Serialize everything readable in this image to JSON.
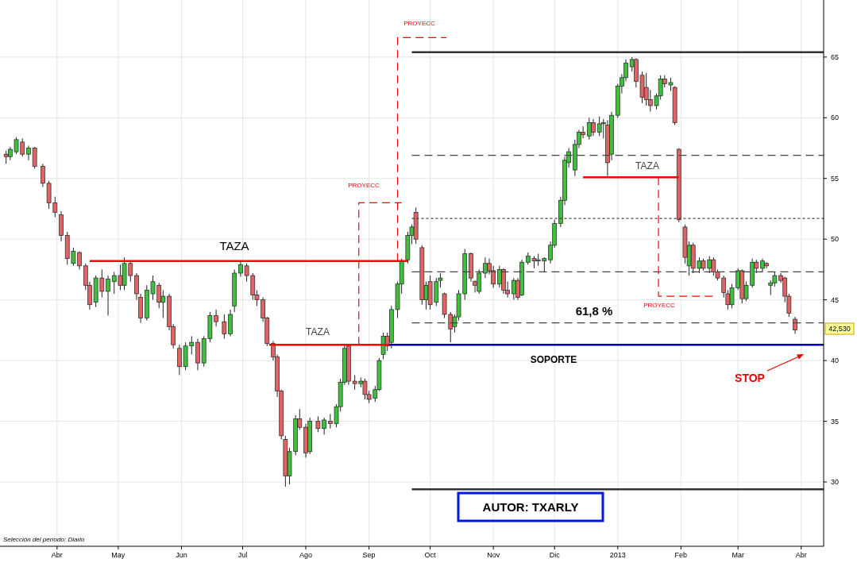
{
  "chart_data": {
    "type": "candlestick",
    "xlim": [
      "2012-03-04",
      "2013-04-12"
    ],
    "ylim": [
      24.7,
      69.7
    ],
    "yticks": [
      30,
      35,
      40,
      45,
      50,
      55,
      60,
      65
    ],
    "xticks": [
      {
        "value": "2012-04-01",
        "label": "Abr"
      },
      {
        "value": "2012-05-01",
        "label": "May"
      },
      {
        "value": "2012-06-01",
        "label": "Jun"
      },
      {
        "value": "2012-07-01",
        "label": "Jul"
      },
      {
        "value": "2012-08-01",
        "label": "Ago"
      },
      {
        "value": "2012-09-01",
        "label": "Sep"
      },
      {
        "value": "2012-10-01",
        "label": "Oct"
      },
      {
        "value": "2012-11-01",
        "label": "Nov"
      },
      {
        "value": "2012-12-01",
        "label": "Dic"
      },
      {
        "value": "2013-01-01",
        "label": "2013"
      },
      {
        "value": "2013-02-01",
        "label": "Feb"
      },
      {
        "value": "2013-03-01",
        "label": "Mar"
      },
      {
        "value": "2013-04-01",
        "label": "Abr"
      }
    ],
    "grid": true,
    "series": [
      {
        "color": "#3fbf3f",
        "x": [
          "2012-03-09",
          "2012-03-12",
          "2012-03-18",
          "2012-04-09",
          "2012-04-20",
          "2012-04-26",
          "2012-04-29",
          "2012-05-04",
          "2012-05-15",
          "2012-05-18",
          "2012-05-23",
          "2012-06-03",
          "2012-06-06",
          "2012-06-12",
          "2012-06-15",
          "2012-06-25",
          "2012-06-27",
          "2012-06-30",
          "2012-07-24",
          "2012-07-27",
          "2012-08-03",
          "2012-08-10",
          "2012-08-16",
          "2012-08-18",
          "2012-08-20",
          "2012-08-28",
          "2012-09-04",
          "2012-09-06",
          "2012-09-08",
          "2012-09-12",
          "2012-09-15",
          "2012-09-17",
          "2012-09-20",
          "2012-09-22",
          "2012-09-29",
          "2012-10-04",
          "2012-10-06",
          "2012-10-13",
          "2012-10-15",
          "2012-10-18",
          "2012-10-25",
          "2012-10-28",
          "2012-11-04",
          "2012-11-11",
          "2012-11-15",
          "2012-11-18",
          "2012-11-23",
          "2012-11-26",
          "2012-11-29",
          "2012-12-01",
          "2012-12-04",
          "2012-12-06",
          "2012-12-08",
          "2012-12-11",
          "2012-12-13",
          "2012-12-18",
          "2012-12-23",
          "2012-12-25",
          "2012-12-29",
          "2013-01-01",
          "2013-01-03",
          "2013-01-05",
          "2013-01-08",
          "2013-01-20",
          "2013-01-22",
          "2013-01-27",
          "2013-02-05",
          "2013-02-10",
          "2013-02-15",
          "2013-02-26",
          "2013-03-01",
          "2013-03-05",
          "2013-03-08",
          "2013-03-13",
          "2013-03-17",
          "2013-03-19"
        ],
        "ohlc": [
          [
            56.8,
            57.6,
            56.5,
            57.4
          ],
          [
            57.2,
            58.4,
            57,
            58.2
          ],
          [
            57,
            57.7,
            56.5,
            57.5
          ],
          [
            48,
            49.3,
            47.8,
            49
          ],
          [
            44.8,
            47,
            44.4,
            46.8
          ],
          [
            45.7,
            47,
            43.7,
            46.7
          ],
          [
            46.5,
            47.3,
            45.5,
            47
          ],
          [
            46.2,
            48.5,
            45.8,
            48
          ],
          [
            43.5,
            46.2,
            43.3,
            45.8
          ],
          [
            45.5,
            47,
            45,
            46.5
          ],
          [
            44.8,
            45.8,
            43.5,
            45.3
          ],
          [
            39.5,
            41.5,
            39.2,
            41.2
          ],
          [
            41.2,
            42,
            40.5,
            41.5
          ],
          [
            39.8,
            42,
            39.5,
            41.8
          ],
          [
            41.8,
            44,
            41.5,
            43.7
          ],
          [
            42.2,
            44.2,
            42,
            43.8
          ],
          [
            44.5,
            47.5,
            44,
            47.2
          ],
          [
            47.2,
            48.2,
            46.9,
            47.9
          ],
          [
            30.5,
            32.8,
            29.8,
            32.5
          ],
          [
            32.5,
            35.5,
            32.2,
            35.2
          ],
          [
            32.5,
            35.3,
            32.3,
            35
          ],
          [
            34.4,
            35.3,
            33.9,
            35.1
          ],
          [
            34.8,
            36.4,
            34.5,
            36.2
          ],
          [
            36.2,
            38.5,
            35.8,
            38.2
          ],
          [
            38.2,
            41.3,
            38,
            41
          ],
          [
            38.1,
            38.6,
            37.8,
            38.3
          ],
          [
            36.9,
            37.9,
            36.6,
            37.6
          ],
          [
            37.6,
            40.2,
            37.5,
            40
          ],
          [
            40.5,
            42.3,
            40.1,
            42
          ],
          [
            41.5,
            44.5,
            41,
            44.2
          ],
          [
            44.2,
            46.5,
            43.5,
            46.3
          ],
          [
            46.3,
            48.4,
            45.5,
            48.2
          ],
          [
            48.3,
            50.6,
            48,
            50.3
          ],
          [
            50.3,
            51.2,
            49.6,
            51
          ],
          [
            45,
            46.5,
            44.2,
            46.2
          ],
          [
            44.8,
            46.8,
            44.5,
            46.5
          ],
          [
            46.6,
            47.2,
            46,
            46.8
          ],
          [
            42.8,
            43.8,
            42.3,
            43.6
          ],
          [
            43.6,
            45.8,
            43.3,
            45.5
          ],
          [
            45.5,
            49.2,
            45,
            48.8
          ],
          [
            45.7,
            47.5,
            45.5,
            47.2
          ],
          [
            47.2,
            48.5,
            46.8,
            48
          ],
          [
            46.3,
            47.8,
            46,
            47.5
          ],
          [
            45.5,
            46.8,
            45,
            46.6
          ],
          [
            45.4,
            48.3,
            45.3,
            48.1
          ],
          [
            48.1,
            48.9,
            47.9,
            48.6
          ],
          [
            48.2,
            48.8,
            47.8,
            48.3
          ],
          [
            48.2,
            48.5,
            47.3,
            48.4
          ],
          [
            48.3,
            49.8,
            48,
            49.5
          ],
          [
            49.5,
            51.6,
            49.3,
            51.3
          ],
          [
            51.3,
            53.5,
            51,
            53.2
          ],
          [
            53.2,
            56.8,
            52.8,
            56.5
          ],
          [
            56.3,
            57.5,
            55.9,
            57.2
          ],
          [
            55.7,
            58.2,
            55.2,
            57.8
          ],
          [
            57.8,
            59,
            57.5,
            58.8
          ],
          [
            58.5,
            60,
            58.2,
            59.6
          ],
          [
            58.8,
            60.1,
            58.5,
            59.5
          ],
          [
            59.5,
            59.9,
            58.3,
            59.6
          ],
          [
            57,
            60.5,
            56.5,
            60.2
          ],
          [
            60.2,
            62.8,
            60,
            62.6
          ],
          [
            62.6,
            63.6,
            62,
            63.3
          ],
          [
            63.3,
            64.8,
            63,
            64.5
          ],
          [
            64.2,
            65,
            63.8,
            64.8
          ],
          [
            61,
            62,
            60.7,
            61.8
          ],
          [
            61.8,
            63.5,
            61.5,
            63.2
          ],
          [
            62.7,
            63.3,
            62.2,
            62.9
          ],
          [
            47.8,
            49.8,
            47,
            49.5
          ],
          [
            47.6,
            48.5,
            47.2,
            48.2
          ],
          [
            47.6,
            48.6,
            47.2,
            48.3
          ],
          [
            44.6,
            46.3,
            44.3,
            46
          ],
          [
            46,
            47.6,
            45.8,
            47.4
          ],
          [
            45.1,
            46.5,
            44.9,
            46.2
          ],
          [
            46.2,
            48.4,
            46,
            48.1
          ],
          [
            47.6,
            48.4,
            47.3,
            48.2
          ],
          [
            46.2,
            46.6,
            45.4,
            46.4
          ],
          [
            46.4,
            47.3,
            46.1,
            47
          ]
        ]
      },
      {
        "color": "#e06464",
        "x": [
          "2012-03-07",
          "2012-03-15",
          "2012-03-21",
          "2012-03-25",
          "2012-03-28",
          "2012-03-31",
          "2012-04-03",
          "2012-04-06",
          "2012-04-12",
          "2012-04-15",
          "2012-04-17",
          "2012-04-23",
          "2012-05-02",
          "2012-05-07",
          "2012-05-10",
          "2012-05-12",
          "2012-05-21",
          "2012-05-26",
          "2012-05-28",
          "2012-05-31",
          "2012-06-09",
          "2012-06-18",
          "2012-06-22",
          "2012-07-03",
          "2012-07-06",
          "2012-07-08",
          "2012-07-11",
          "2012-07-13",
          "2012-07-16",
          "2012-07-18",
          "2012-07-20",
          "2012-07-22",
          "2012-07-29",
          "2012-08-01",
          "2012-08-07",
          "2012-08-13",
          "2012-08-22",
          "2012-08-25",
          "2012-08-30",
          "2012-09-01",
          "2012-09-10",
          "2012-09-24",
          "2012-09-27",
          "2012-10-01",
          "2012-10-08",
          "2012-10-11",
          "2012-10-21",
          "2012-10-23",
          "2012-10-30",
          "2012-11-01",
          "2012-11-06",
          "2012-11-08",
          "2012-11-13",
          "2012-11-21",
          "2012-12-15",
          "2012-12-20",
          "2012-12-27",
          "2013-01-10",
          "2013-01-13",
          "2013-01-15",
          "2013-01-17",
          "2013-01-24",
          "2013-01-29",
          "2013-01-31",
          "2013-02-03",
          "2013-02-07",
          "2013-02-12",
          "2013-02-17",
          "2013-02-19",
          "2013-02-22",
          "2013-02-24",
          "2013-03-03",
          "2013-03-10",
          "2013-03-15",
          "2013-03-22",
          "2013-03-24",
          "2013-03-26",
          "2013-03-29"
        ],
        "ohlc": [
          [
            57,
            57.3,
            56.2,
            56.8
          ],
          [
            58,
            58.3,
            56.8,
            57
          ],
          [
            57.5,
            57.6,
            55.8,
            56
          ],
          [
            56,
            56.2,
            54.3,
            54.6
          ],
          [
            54.6,
            54.8,
            52.5,
            53
          ],
          [
            53,
            53.5,
            51.8,
            52.2
          ],
          [
            52,
            52.3,
            49.8,
            50.3
          ],
          [
            50.3,
            50.6,
            47.9,
            48.4
          ],
          [
            48.9,
            49,
            47.5,
            47.8
          ],
          [
            47.8,
            48,
            45.8,
            46.2
          ],
          [
            46.2,
            46.5,
            44.2,
            44.6
          ],
          [
            46.8,
            47.5,
            45.2,
            45.7
          ],
          [
            47,
            47.9,
            45.8,
            46.2
          ],
          [
            48,
            48.2,
            46.5,
            47
          ],
          [
            47,
            47.2,
            45,
            45.5
          ],
          [
            45.2,
            45.5,
            43.1,
            43.5
          ],
          [
            46.2,
            46.4,
            44.3,
            44.8
          ],
          [
            45.3,
            45.5,
            42.5,
            42.8
          ],
          [
            42.8,
            43,
            41,
            41.3
          ],
          [
            41,
            41.3,
            38.8,
            39.5
          ],
          [
            41.5,
            41.8,
            39.2,
            39.8
          ],
          [
            43.7,
            44.2,
            42.8,
            43.2
          ],
          [
            43.2,
            43.8,
            41.8,
            42.2
          ],
          [
            47.8,
            48,
            46.5,
            47
          ],
          [
            47,
            47.2,
            45,
            45.4
          ],
          [
            45.4,
            45.8,
            44.5,
            45
          ],
          [
            45,
            45.2,
            43.2,
            43.5
          ],
          [
            43.5,
            43.6,
            41.2,
            41.4
          ],
          [
            41.4,
            41.6,
            40,
            40.3
          ],
          [
            40.3,
            40.5,
            37,
            37.5
          ],
          [
            37.5,
            37.6,
            33.5,
            33.8
          ],
          [
            33.5,
            33.8,
            29.6,
            30.5
          ],
          [
            35.2,
            36,
            34.3,
            34.5
          ],
          [
            34.5,
            34.8,
            32,
            32.4
          ],
          [
            35,
            35.4,
            34.1,
            34.4
          ],
          [
            35,
            35.6,
            34.4,
            34.8
          ],
          [
            41.2,
            41.3,
            38,
            38.3
          ],
          [
            38.3,
            38.8,
            37.6,
            38.1
          ],
          [
            38.3,
            38.5,
            36.8,
            37.2
          ],
          [
            37.2,
            37.5,
            36.5,
            36.8
          ],
          [
            42,
            42.3,
            40.8,
            41.2
          ],
          [
            52.2,
            52.6,
            49.6,
            50
          ],
          [
            49.3,
            49.5,
            44.6,
            45
          ],
          [
            46.5,
            47,
            44.2,
            44.6
          ],
          [
            45.5,
            45.6,
            43.5,
            43.8
          ],
          [
            43.8,
            44,
            41.5,
            42.6
          ],
          [
            48.8,
            48.9,
            46.5,
            46.8
          ],
          [
            46.5,
            46.6,
            45.6,
            46.2
          ],
          [
            48,
            48.4,
            47.1,
            47.4
          ],
          [
            47.4,
            47.8,
            46,
            46.3
          ],
          [
            47.5,
            47.6,
            45.5,
            45.8
          ],
          [
            45.8,
            46.5,
            45.2,
            45.5
          ],
          [
            46.6,
            46.8,
            45,
            45.2
          ],
          [
            48.4,
            48.6,
            47.6,
            48.2
          ],
          [
            58.8,
            59.3,
            58.3,
            58.6
          ],
          [
            59.6,
            59.9,
            58.5,
            58.8
          ],
          [
            59.4,
            59.8,
            55.2,
            56.3
          ],
          [
            64.8,
            64.9,
            62.5,
            63
          ],
          [
            63.5,
            63.8,
            61.2,
            61.7
          ],
          [
            62.5,
            63.7,
            61,
            61.5
          ],
          [
            61.5,
            62.3,
            60.5,
            61
          ],
          [
            63.2,
            63.5,
            62.5,
            62.8
          ],
          [
            62.5,
            62.6,
            59.4,
            59.6
          ],
          [
            57.4,
            57.5,
            51.4,
            51.6
          ],
          [
            51,
            51.2,
            48,
            48.5
          ],
          [
            49.5,
            49.7,
            47.2,
            47.6
          ],
          [
            48.2,
            48.4,
            47.4,
            47.6
          ],
          [
            48.3,
            48.5,
            47,
            47.3
          ],
          [
            47.3,
            47.5,
            46.6,
            46.8
          ],
          [
            46.8,
            47,
            45.2,
            45.6
          ],
          [
            45.5,
            45.8,
            44.2,
            44.6
          ],
          [
            47.4,
            47.5,
            44.7,
            45.1
          ],
          [
            48.1,
            48.3,
            47.2,
            47.6
          ],
          [
            48,
            48.1,
            47.6,
            47.8
          ],
          [
            47,
            47.2,
            46.4,
            46.6
          ],
          [
            46.8,
            46.9,
            44.8,
            45.3
          ],
          [
            45.3,
            45.5,
            43.6,
            43.9
          ],
          [
            43.4,
            43.6,
            42.2,
            42.53
          ]
        ]
      },
      {
        "type": "line",
        "color": "#ff0000",
        "line_style": "solid",
        "x": [
          "2012-04-17",
          "2012-09-20"
        ],
        "values": [
          48.2,
          48.2
        ]
      },
      {
        "type": "line",
        "color": "#ff0000",
        "line_style": "solid",
        "x": [
          "2012-07-14",
          "2012-09-11"
        ],
        "values": [
          41.3,
          41.3
        ]
      },
      {
        "type": "line",
        "color": "#ff0000",
        "line_style": "solid",
        "x": [
          "2012-12-15",
          "2013-01-31"
        ],
        "values": [
          55.1,
          55.1
        ]
      },
      {
        "type": "line",
        "color": "#0000a0",
        "line_style": "solid",
        "x": [
          "2012-09-11",
          "2013-04-12"
        ],
        "values": [
          41.3,
          41.3
        ]
      },
      {
        "type": "line",
        "color": "#333333",
        "line_style": "solid",
        "x": [
          "2012-09-22",
          "2013-04-12"
        ],
        "values": [
          65.4,
          65.4
        ]
      },
      {
        "type": "line",
        "color": "#333333",
        "line_style": "solid",
        "x": [
          "2012-09-22",
          "2013-04-12"
        ],
        "values": [
          29.4,
          29.4
        ]
      },
      {
        "type": "line",
        "color": "#444444",
        "line_style": "dashed",
        "x": [
          "2012-09-22",
          "2013-04-12"
        ],
        "values": [
          56.9,
          56.9
        ]
      },
      {
        "type": "line",
        "color": "#444444",
        "line_style": "dotted",
        "x": [
          "2012-09-22",
          "2013-04-12"
        ],
        "values": [
          51.7,
          51.7
        ]
      },
      {
        "type": "line",
        "color": "#444444",
        "line_style": "dashed",
        "x": [
          "2012-09-22",
          "2013-04-12"
        ],
        "values": [
          47.3,
          47.3
        ]
      },
      {
        "type": "line",
        "color": "#444444",
        "line_style": "dashed",
        "x": [
          "2012-09-22",
          "2013-04-12"
        ],
        "values": [
          43.1,
          43.1
        ]
      },
      {
        "type": "line",
        "color": "#ff0000",
        "line_style": "dashed",
        "x": [
          "2012-08-27",
          "2012-08-27",
          "2012-09-17"
        ],
        "values": [
          41.3,
          53,
          53
        ]
      },
      {
        "type": "line",
        "color": "#ff0000",
        "line_style": "dashed",
        "x": [
          "2012-09-15",
          "2012-09-15",
          "2012-10-09"
        ],
        "values": [
          48.2,
          66.6,
          66.6
        ]
      },
      {
        "type": "line",
        "color": "#ff0000",
        "line_style": "dashed",
        "x": [
          "2013-01-21",
          "2013-01-21",
          "2013-02-18"
        ],
        "values": [
          55.1,
          45.3,
          45.3
        ]
      }
    ],
    "annotations": [
      "TAZA",
      "TAZA",
      "TAZA",
      "PROYECC",
      "PROYECC",
      "PROYECC",
      "61,8  %",
      "SOPORTE",
      "STOP",
      "42,530",
      "AUTOR: TXARLY",
      "Selección del período: Diario"
    ]
  }
}
